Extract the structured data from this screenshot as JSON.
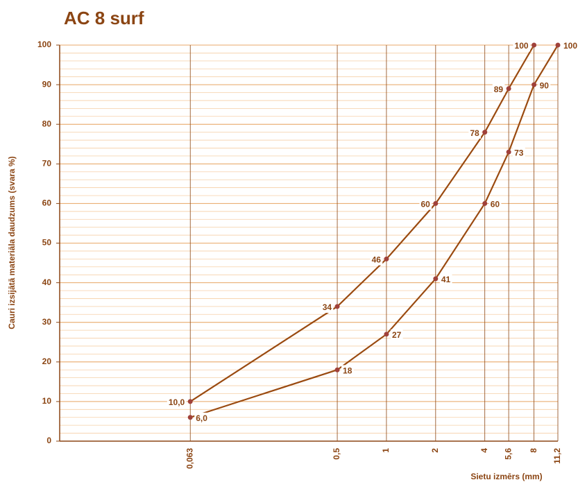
{
  "chart_data": {
    "type": "line",
    "title": "AC 8 surf",
    "x_label": "Sietu izmērs (mm)",
    "y_label": "Cauri izsijātā materiāla daudzums (svara %)",
    "x_log": true,
    "grid": true,
    "xlim": [
      0.01,
      11.2
    ],
    "ylim": [
      0,
      100
    ],
    "xticks": [
      {
        "value": 0.063,
        "label": "0,063"
      },
      {
        "value": 0.5,
        "label": "0,5"
      },
      1,
      2,
      4,
      {
        "value": 5.6,
        "label": "5,6"
      },
      8,
      {
        "value": 11.2,
        "label": "11,2"
      }
    ],
    "yticks": [
      0,
      10,
      20,
      30,
      40,
      50,
      60,
      70,
      80,
      90,
      100
    ],
    "series": [
      {
        "color": "#9a4a10",
        "label_side": "left",
        "x": [
          0.063,
          0.5,
          1,
          2,
          4,
          5.6,
          8
        ],
        "values": [
          10,
          34,
          46,
          60,
          78,
          89,
          100
        ],
        "value_labels": [
          "10,0",
          "34",
          "46",
          "60",
          "78",
          "89",
          "100"
        ]
      },
      {
        "color": "#9a4a10",
        "label_side": "right",
        "x": [
          0.063,
          0.5,
          1,
          2,
          4,
          5.6,
          8,
          11.2
        ],
        "values": [
          6,
          18,
          27,
          41,
          60,
          73,
          90,
          100
        ],
        "value_labels": [
          "6,0",
          "18",
          "27",
          "41",
          "60",
          "73",
          "90",
          "100"
        ]
      }
    ]
  }
}
